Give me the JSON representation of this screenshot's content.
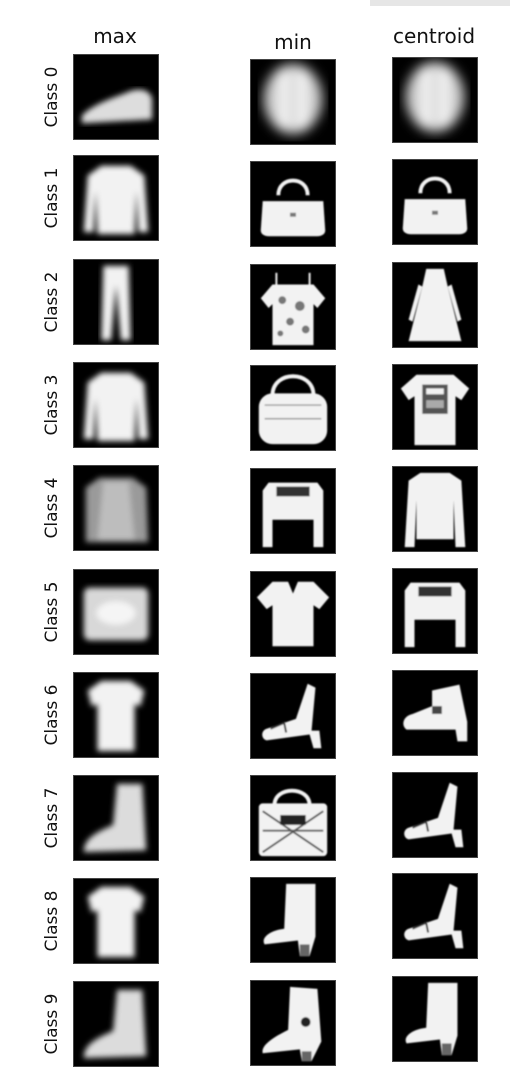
{
  "columns": [
    "max",
    "min",
    "centroid"
  ],
  "rows": [
    {
      "label": "Class 0",
      "icons": [
        "sneaker-mean-icon",
        "blob-mean-icon",
        "blob-mean-icon"
      ]
    },
    {
      "label": "Class 1",
      "icons": [
        "long-sleeve-mean-icon",
        "handbag-icon",
        "handbag-icon"
      ]
    },
    {
      "label": "Class 2",
      "icons": [
        "trouser-mean-icon",
        "floral-top-icon",
        "dress-icon"
      ]
    },
    {
      "label": "Class 3",
      "icons": [
        "long-sleeve-mean-icon",
        "round-bag-icon",
        "graphic-tshirt-icon"
      ]
    },
    {
      "label": "Class 4",
      "icons": [
        "pullover-mean-icon",
        "crop-top-icon",
        "long-sleeve-icon"
      ]
    },
    {
      "label": "Class 5",
      "icons": [
        "bag-mean-icon",
        "vneck-tshirt-icon",
        "crop-top-icon"
      ]
    },
    {
      "label": "Class 6",
      "icons": [
        "shirt-mean-icon",
        "heel-sandal-icon",
        "ankle-boot-icon"
      ]
    },
    {
      "label": "Class 7",
      "icons": [
        "boot-mean-icon",
        "patterned-bag-icon",
        "heel-sandal-icon"
      ]
    },
    {
      "label": "Class 8",
      "icons": [
        "shirt-mean-icon",
        "tall-boot-icon",
        "heel-sandal-icon"
      ]
    },
    {
      "label": "Class 9",
      "icons": [
        "boot-mean-icon",
        "heel-boot-icon",
        "tall-boot-icon"
      ]
    }
  ],
  "colors": {
    "tile_bg": "#000000",
    "garment": "#f2f2f2"
  }
}
